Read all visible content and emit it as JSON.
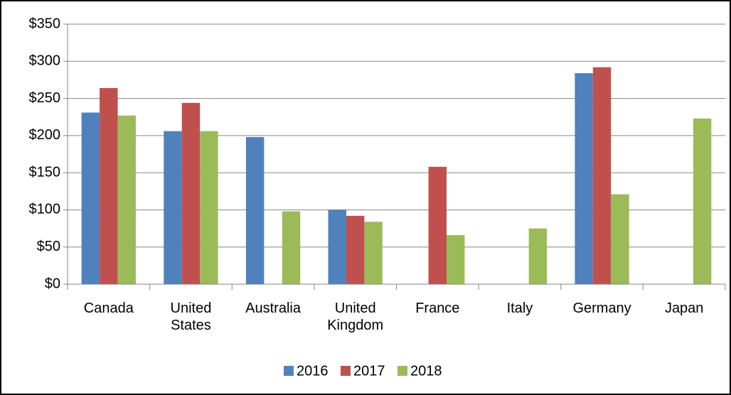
{
  "chart_data": {
    "type": "bar",
    "categories": [
      "Canada",
      "United States",
      "Australia",
      "United Kingdom",
      "France",
      "Italy",
      "Germany",
      "Japan"
    ],
    "series": [
      {
        "name": "2016",
        "color": "#4f81bd",
        "values": [
          231,
          206,
          198,
          100,
          null,
          null,
          284,
          null
        ]
      },
      {
        "name": "2017",
        "color": "#c0504d",
        "values": [
          264,
          244,
          null,
          92,
          158,
          null,
          292,
          null
        ]
      },
      {
        "name": "2018",
        "color": "#9bbb59",
        "values": [
          227,
          206,
          98,
          84,
          66,
          75,
          121,
          223
        ]
      }
    ],
    "ylim": [
      0,
      350
    ],
    "yticks": [
      {
        "value": 0,
        "label": "$0"
      },
      {
        "value": 50,
        "label": "$50"
      },
      {
        "value": 100,
        "label": "$100"
      },
      {
        "value": 150,
        "label": "$150"
      },
      {
        "value": 200,
        "label": "$200"
      },
      {
        "value": 250,
        "label": "$250"
      },
      {
        "value": 300,
        "label": "$300"
      },
      {
        "value": 350,
        "label": "$350"
      }
    ],
    "grid": true,
    "legend": "bottom"
  }
}
